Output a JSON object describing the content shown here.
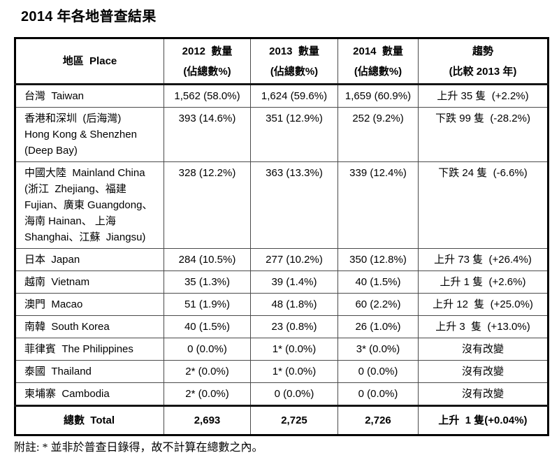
{
  "page": {
    "title": "2014 年各地普查結果",
    "footnote": "附註: * 並非於普查日錄得，故不計算在總數之內。"
  },
  "table": {
    "headers": [
      {
        "line1": "地區  Place",
        "line2": ""
      },
      {
        "line1": "2012  數量",
        "line2": "(佔總數%)"
      },
      {
        "line1": "2013  數量",
        "line2": "(佔總數%)"
      },
      {
        "line1": "2014  數量",
        "line2": "(佔總數%)"
      },
      {
        "line1": "趨勢",
        "line2": "(比較 2013 年)"
      }
    ],
    "rows": [
      {
        "place": "台灣  Taiwan",
        "y2012": "1,562 (58.0%)",
        "y2013": "1,624 (59.6%)",
        "y2014": "1,659 (60.9%)",
        "trend": "上升 35 隻  (+2.2%)"
      },
      {
        "place": "香港和深圳  (后海灣)\nHong Kong & Shenzhen\n(Deep Bay)",
        "y2012": "393 (14.6%)",
        "y2013": "351 (12.9%)",
        "y2014": "252 (9.2%)",
        "trend": "下跌 99 隻  (-28.2%)"
      },
      {
        "place": "中國大陸  Mainland China\n(浙江  Zhejiang、福建\nFujian、廣東 Guangdong、\n海南 Hainan、 上海\nShanghai、江蘇  Jiangsu)",
        "y2012": "328 (12.2%)",
        "y2013": "363 (13.3%)",
        "y2014": "339 (12.4%)",
        "trend": "下跌 24 隻  (-6.6%)"
      },
      {
        "place": "日本  Japan",
        "y2012": "284 (10.5%)",
        "y2013": "277 (10.2%)",
        "y2014": "350 (12.8%)",
        "trend": "上升 73 隻  (+26.4%)"
      },
      {
        "place": "越南  Vietnam",
        "y2012": "35 (1.3%)",
        "y2013": "39 (1.4%)",
        "y2014": "40 (1.5%)",
        "trend": "上升 1 隻  (+2.6%)"
      },
      {
        "place": "澳門  Macao",
        "y2012": "51 (1.9%)",
        "y2013": "48 (1.8%)",
        "y2014": "60 (2.2%)",
        "trend": "上升 12  隻  (+25.0%)"
      },
      {
        "place": "南韓  South Korea",
        "y2012": "40 (1.5%)",
        "y2013": "23 (0.8%)",
        "y2014": "26 (1.0%)",
        "trend": "上升 3  隻  (+13.0%)"
      },
      {
        "place": "菲律賓  The Philippines",
        "y2012": "0 (0.0%)",
        "y2013": "1* (0.0%)",
        "y2014": "3* (0.0%)",
        "trend": "沒有改變"
      },
      {
        "place": "泰國  Thailand",
        "y2012": "2* (0.0%)",
        "y2013": "1* (0.0%)",
        "y2014": "0 (0.0%)",
        "trend": "沒有改變"
      },
      {
        "place": "柬埔寨  Cambodia",
        "y2012": "2* (0.0%)",
        "y2013": "0 (0.0%)",
        "y2014": "0 (0.0%)",
        "trend": "沒有改變"
      }
    ],
    "total": {
      "place": "總數  Total",
      "y2012": "2,693",
      "y2013": "2,725",
      "y2014": "2,726",
      "trend": "上升  1 隻(+0.04%)"
    }
  }
}
